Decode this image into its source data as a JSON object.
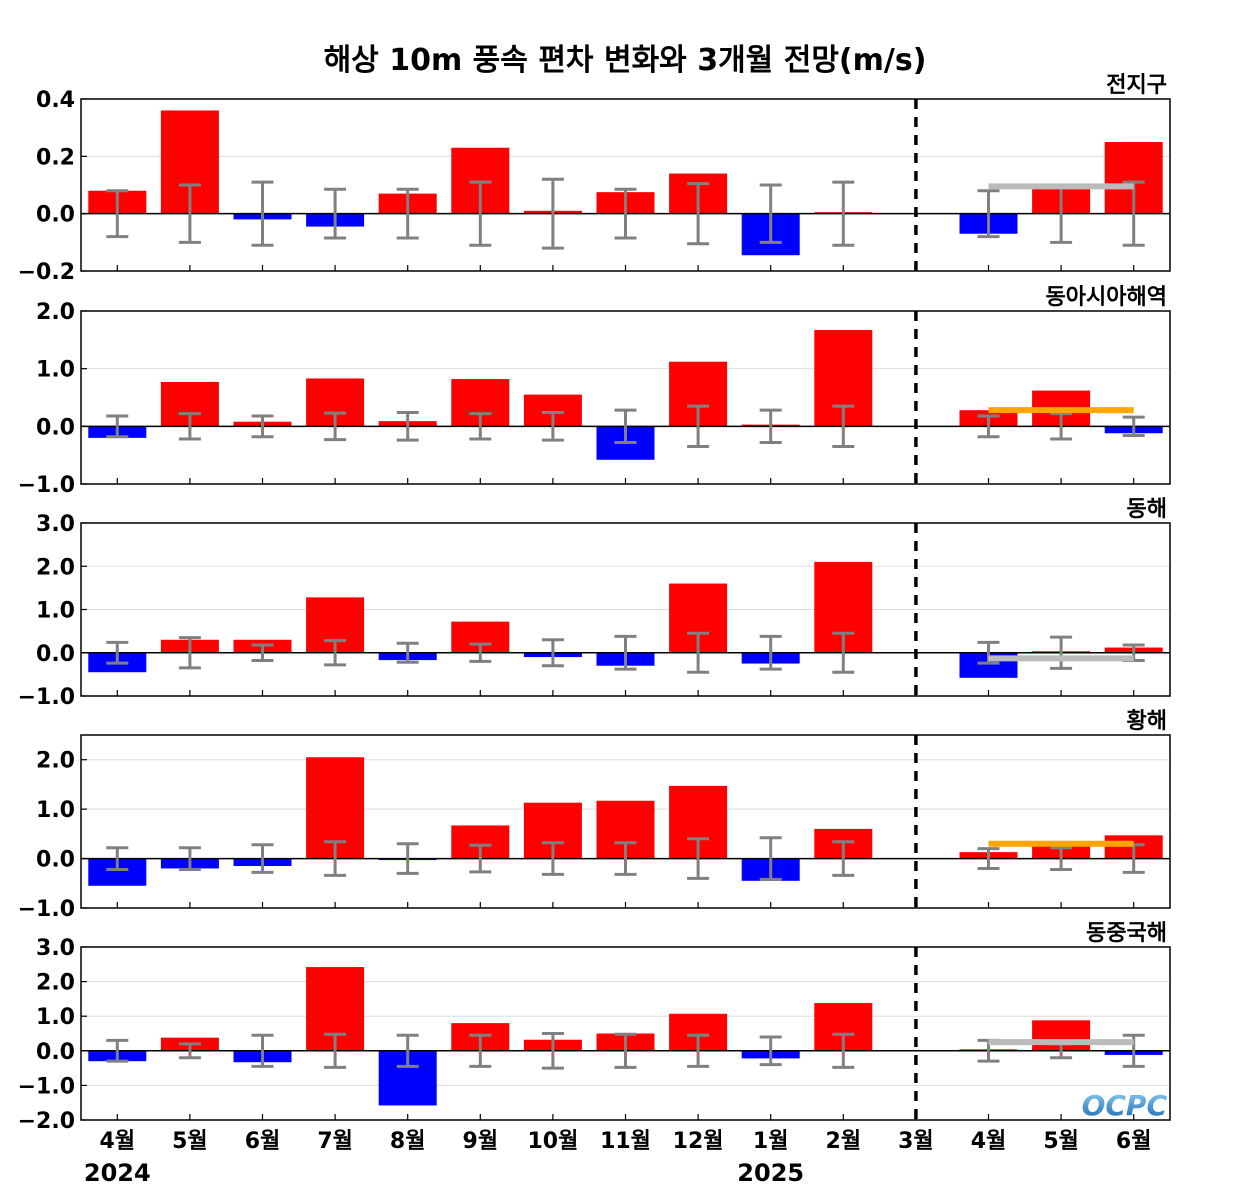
{
  "title": "해상 10m 풍속 편차 변화와 3개월 전망(m/s)",
  "logo": "OCPC",
  "colors": {
    "positive": "#ff0000",
    "negative": "#0000ff",
    "error_bar": "#808080",
    "forecast_gray": "#bbbbbb",
    "forecast_orange": "#ffa500",
    "divider": "#000000"
  },
  "chart_data": [
    {
      "type": "bar",
      "panel": "전지구",
      "categories": [
        "4월",
        "5월",
        "6월",
        "7월",
        "8월",
        "9월",
        "10월",
        "11월",
        "12월",
        "1월",
        "2월",
        "3월",
        "4월",
        "5월",
        "6월"
      ],
      "values": [
        0.08,
        0.36,
        -0.02,
        -0.045,
        0.07,
        0.23,
        0.01,
        0.075,
        0.14,
        -0.145,
        0.003,
        0.0,
        -0.07,
        0.1,
        0.25
      ],
      "error_bars": [
        0.08,
        0.1,
        0.11,
        0.085,
        0.085,
        0.11,
        0.12,
        0.085,
        0.105,
        0.1,
        0.11,
        0.0,
        0.08,
        0.1,
        0.11
      ],
      "forecast": {
        "value": 0.095,
        "color": "gray"
      },
      "ylim": [
        -0.2,
        0.4
      ],
      "yticks": [
        -0.2,
        0.0,
        0.2,
        0.4
      ],
      "ytick_labels": [
        "−0.2",
        "0.0",
        "0.2",
        "0.4"
      ],
      "grid": true
    },
    {
      "type": "bar",
      "panel": "동아시아해역",
      "categories": [
        "4월",
        "5월",
        "6월",
        "7월",
        "8월",
        "9월",
        "10월",
        "11월",
        "12월",
        "1월",
        "2월",
        "3월",
        "4월",
        "5월",
        "6월"
      ],
      "values": [
        -0.2,
        0.77,
        0.08,
        0.83,
        0.09,
        0.82,
        0.55,
        -0.58,
        1.12,
        0.03,
        1.67,
        0.0,
        0.28,
        0.62,
        -0.12
      ],
      "error_bars": [
        0.18,
        0.22,
        0.18,
        0.23,
        0.24,
        0.22,
        0.24,
        0.28,
        0.35,
        0.28,
        0.35,
        0.0,
        0.18,
        0.22,
        0.16
      ],
      "forecast": {
        "value": 0.28,
        "color": "orange"
      },
      "ylim": [
        -1.0,
        2.0
      ],
      "yticks": [
        -1.0,
        0.0,
        1.0,
        2.0
      ],
      "ytick_labels": [
        "−1.0",
        "0.0",
        "1.0",
        "2.0"
      ],
      "grid": true
    },
    {
      "type": "bar",
      "panel": "동해",
      "categories": [
        "4월",
        "5월",
        "6월",
        "7월",
        "8월",
        "9월",
        "10월",
        "11월",
        "12월",
        "1월",
        "2월",
        "3월",
        "4월",
        "5월",
        "6월"
      ],
      "values": [
        -0.45,
        0.3,
        0.3,
        1.28,
        -0.17,
        0.72,
        -0.1,
        -0.3,
        1.6,
        -0.25,
        2.1,
        0.0,
        -0.58,
        0.02,
        0.12
      ],
      "error_bars": [
        0.24,
        0.35,
        0.18,
        0.28,
        0.22,
        0.2,
        0.3,
        0.38,
        0.45,
        0.38,
        0.45,
        0.0,
        0.24,
        0.36,
        0.18
      ],
      "forecast": {
        "value": -0.13,
        "color": "gray"
      },
      "ylim": [
        -1.0,
        3.0
      ],
      "yticks": [
        -1.0,
        0.0,
        1.0,
        2.0,
        3.0
      ],
      "ytick_labels": [
        "−1.0",
        "0.0",
        "1.0",
        "2.0",
        "3.0"
      ],
      "grid": true
    },
    {
      "type": "bar",
      "panel": "황해",
      "categories": [
        "4월",
        "5월",
        "6월",
        "7월",
        "8월",
        "9월",
        "10월",
        "11월",
        "12월",
        "1월",
        "2월",
        "3월",
        "4월",
        "5월",
        "6월"
      ],
      "values": [
        -0.55,
        -0.2,
        -0.15,
        2.05,
        -0.03,
        0.67,
        1.13,
        1.17,
        1.47,
        -0.45,
        0.6,
        0.0,
        0.13,
        0.28,
        0.47
      ],
      "error_bars": [
        0.22,
        0.22,
        0.28,
        0.34,
        0.3,
        0.27,
        0.32,
        0.32,
        0.4,
        0.42,
        0.34,
        0.0,
        0.2,
        0.22,
        0.28
      ],
      "forecast": {
        "value": 0.3,
        "color": "orange"
      },
      "ylim": [
        -1.0,
        2.5
      ],
      "yticks": [
        -1.0,
        0.0,
        1.0,
        2.0
      ],
      "ytick_labels": [
        "−1.0",
        "0.0",
        "1.0",
        "2.0"
      ],
      "grid": true
    },
    {
      "type": "bar",
      "panel": "동중국해",
      "categories": [
        "4월",
        "5월",
        "6월",
        "7월",
        "8월",
        "9월",
        "10월",
        "11월",
        "12월",
        "1월",
        "2월",
        "3월",
        "4월",
        "5월",
        "6월"
      ],
      "values": [
        -0.3,
        0.38,
        -0.33,
        2.42,
        -1.58,
        0.8,
        0.32,
        0.5,
        1.07,
        -0.22,
        1.38,
        0.0,
        0.0,
        0.88,
        -0.12
      ],
      "error_bars": [
        0.3,
        0.2,
        0.45,
        0.48,
        0.45,
        0.45,
        0.5,
        0.48,
        0.45,
        0.4,
        0.48,
        0.0,
        0.3,
        0.2,
        0.45
      ],
      "forecast": {
        "value": 0.25,
        "color": "gray"
      },
      "ylim": [
        -2.0,
        3.0
      ],
      "yticks": [
        -2.0,
        -1.0,
        0.0,
        1.0,
        2.0,
        3.0
      ],
      "ytick_labels": [
        "−2.0",
        "−1.0",
        "0.0",
        "1.0",
        "2.0",
        "3.0"
      ],
      "grid": true
    }
  ],
  "x_axis": {
    "labels": [
      "4월",
      "5월",
      "6월",
      "7월",
      "8월",
      "9월",
      "10월",
      "11월",
      "12월",
      "1월",
      "2월",
      "3월",
      "4월",
      "5월",
      "6월"
    ],
    "year_labels": [
      "2024",
      "2025"
    ]
  }
}
